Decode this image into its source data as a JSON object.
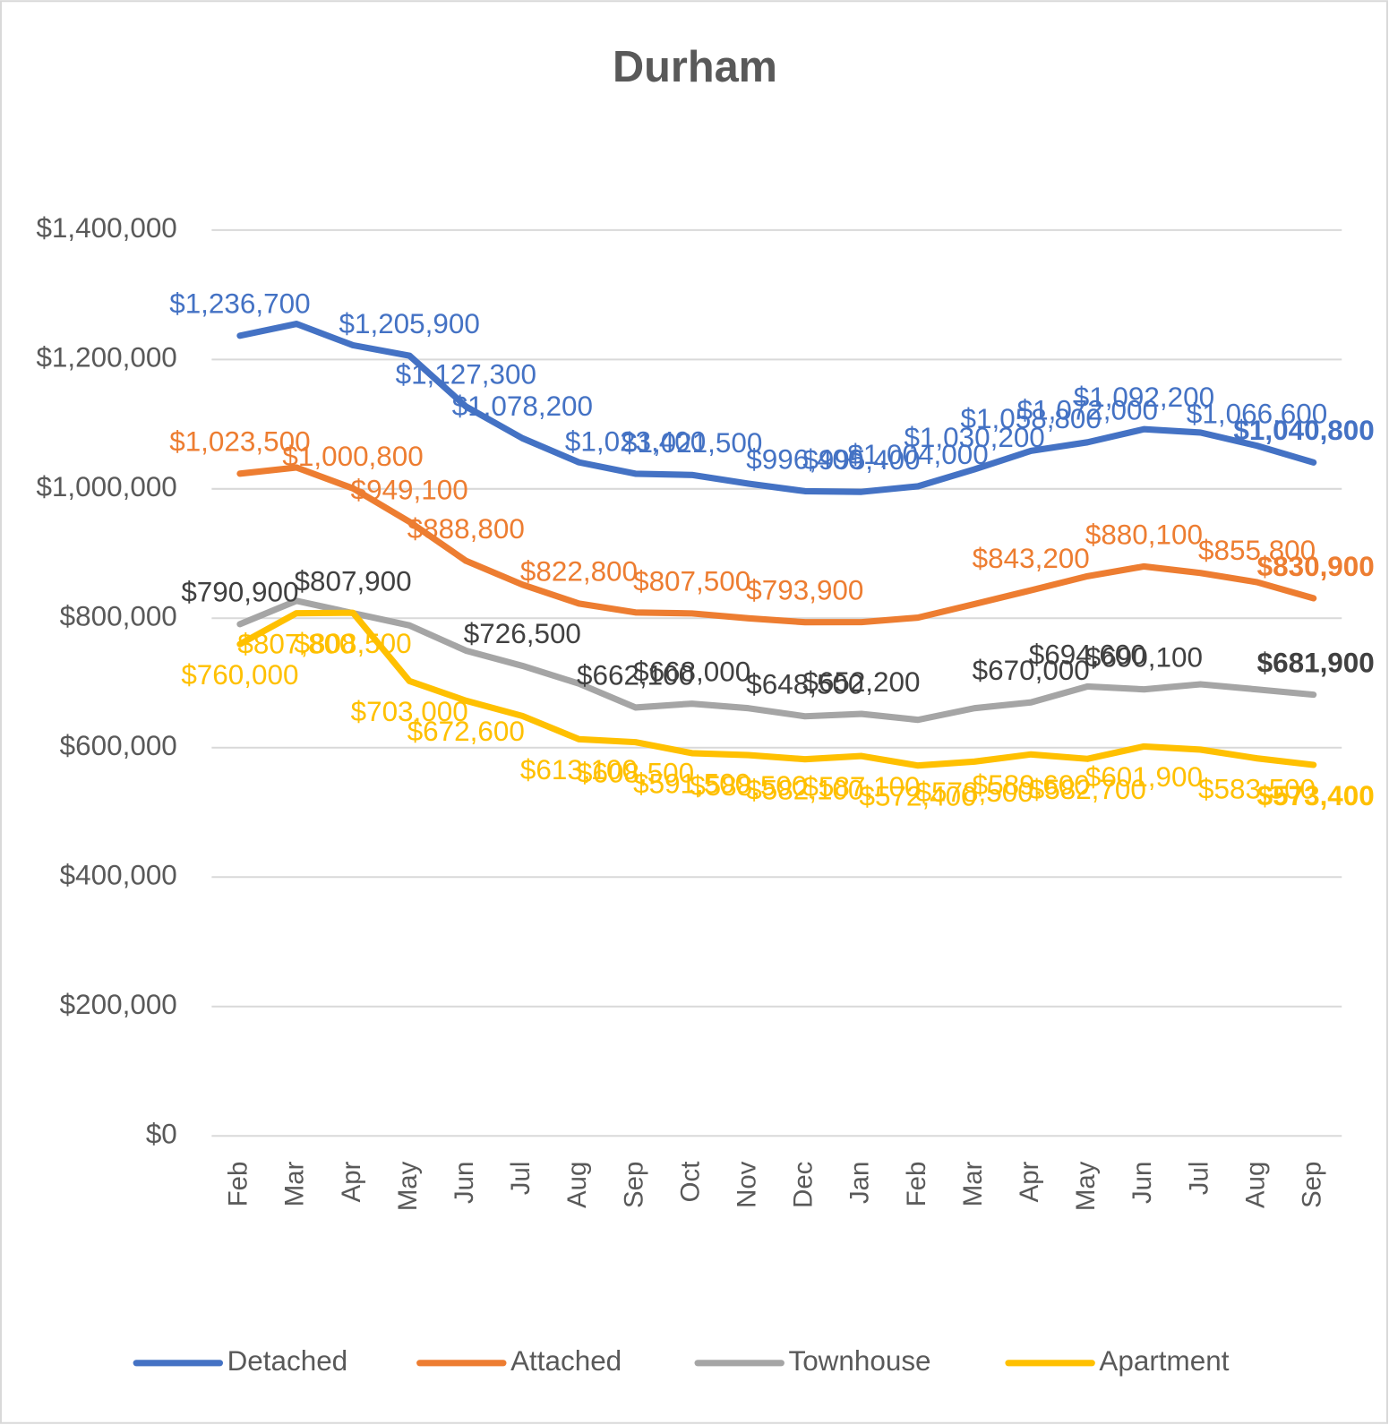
{
  "chart_data": {
    "type": "line",
    "title": "Durham",
    "categories": [
      "Feb",
      "Mar",
      "Apr",
      "May",
      "Jun",
      "Jul",
      "Aug",
      "Sep",
      "Oct",
      "Nov",
      "Dec",
      "Jan",
      "Feb",
      "Mar",
      "Apr",
      "May",
      "Jun",
      "Jul",
      "Aug",
      "Sep"
    ],
    "ylim": [
      0,
      1400000
    ],
    "yticks": [
      {
        "value": 0,
        "label": "$0"
      },
      {
        "value": 200000,
        "label": "$200,000"
      },
      {
        "value": 400000,
        "label": "$400,000"
      },
      {
        "value": 600000,
        "label": "$600,000"
      },
      {
        "value": 800000,
        "label": "$800,000"
      },
      {
        "value": 1000000,
        "label": "$1,000,000"
      },
      {
        "value": 1200000,
        "label": "$1,200,000"
      },
      {
        "value": 1400000,
        "label": "$1,400,000"
      }
    ],
    "grid": true,
    "legend": "bottom",
    "series": [
      {
        "name": "Detached",
        "color": "#4472c4",
        "label_color": "#4472c4",
        "values": [
          1236700,
          1255000,
          1222000,
          1205900,
          1127300,
          1078200,
          1041000,
          1023400,
          1021500,
          1008000,
          996400,
          995400,
          1004000,
          1030200,
          1058800,
          1072000,
          1092200,
          1087000,
          1066600,
          1040800
        ],
        "value_labels": [
          "$1,236,700",
          null,
          null,
          "$1,205,900",
          "$1,127,300",
          "$1,078,200",
          null,
          "$1,023,400",
          "$1,021,500",
          null,
          "$996,400",
          "$995,400",
          "$1,004,000",
          "$1,030,200",
          "$1,058,800",
          "$1,072,000",
          "$1,092,200",
          null,
          "$1,066,600",
          "$1,040,800"
        ]
      },
      {
        "name": "Attached",
        "color": "#ed7d31",
        "label_color": "#ed7d31",
        "values": [
          1023500,
          1033000,
          1000800,
          949100,
          888800,
          852000,
          822800,
          809000,
          807500,
          800000,
          793900,
          794000,
          801000,
          822000,
          843200,
          865000,
          880100,
          870000,
          855800,
          830900
        ],
        "value_labels": [
          "$1,023,500",
          null,
          "$1,000,800",
          "$949,100",
          "$888,800",
          null,
          "$822,800",
          null,
          "$807,500",
          null,
          "$793,900",
          null,
          null,
          null,
          "$843,200",
          null,
          "$880,100",
          null,
          "$855,800",
          "$830,900"
        ]
      },
      {
        "name": "Townhouse",
        "color": "#a5a5a5",
        "label_color": "#404040",
        "values": [
          790900,
          827000,
          807900,
          789000,
          750000,
          726500,
          699000,
          662100,
          668000,
          661000,
          648500,
          652200,
          643000,
          661000,
          670000,
          694600,
          690100,
          698000,
          690000,
          681900
        ],
        "value_labels": [
          "$790,900",
          null,
          "$807,900",
          null,
          null,
          "$726,500",
          null,
          "$662,100",
          "$668,000",
          null,
          "$648,500",
          "$652,200",
          null,
          null,
          "$670,000",
          "$694,600",
          "$690,100",
          null,
          null,
          "$681,900"
        ]
      },
      {
        "name": "Apartment",
        "color": "#ffc000",
        "label_color": "#ffc000",
        "values": [
          760000,
          807800,
          808500,
          703000,
          672600,
          649000,
          613100,
          608500,
          591500,
          588500,
          582100,
          587100,
          572400,
          578500,
          589600,
          582700,
          601900,
          597000,
          583500,
          573400
        ],
        "value_labels": [
          "$760,000",
          "$807,800",
          "$808,500",
          "$703,000",
          "$672,600",
          null,
          "$613,100",
          "$608,500",
          "$591,500",
          "$588,500",
          "$582,100",
          "$587,100",
          "$572,400",
          "$578,500",
          "$589,600",
          "$582,700",
          "$601,900",
          null,
          "$583,500",
          "$573,400"
        ]
      }
    ]
  }
}
